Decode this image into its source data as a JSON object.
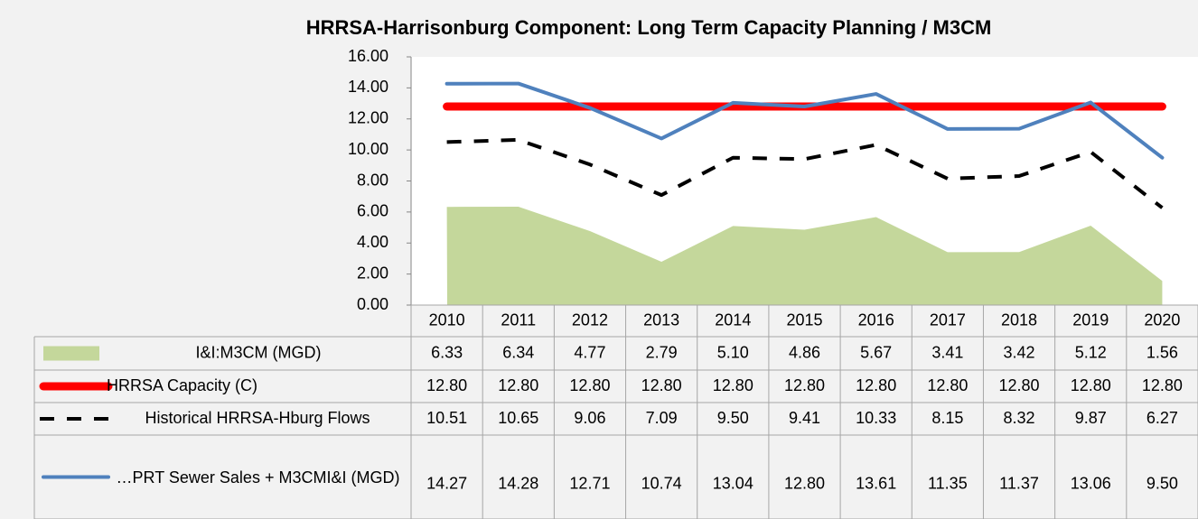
{
  "chart_data": {
    "type": "line",
    "title": "HRRSA-Harrisonburg Component:  Long Term Capacity Planning / M3CM",
    "categories": [
      "2010",
      "2011",
      "2012",
      "2013",
      "2014",
      "2015",
      "2016",
      "2017",
      "2018",
      "2019",
      "2020"
    ],
    "ylim": [
      0,
      16
    ],
    "yticks": [
      {
        "value": 0,
        "label": "0.00"
      },
      {
        "value": 2,
        "label": "2.00"
      },
      {
        "value": 4,
        "label": "4.00"
      },
      {
        "value": 6,
        "label": "6.00"
      },
      {
        "value": 8,
        "label": "8.00"
      },
      {
        "value": 10,
        "label": "10.00"
      },
      {
        "value": 12,
        "label": "12.00"
      },
      {
        "value": 14,
        "label": "14.00"
      },
      {
        "value": 16,
        "label": "16.00"
      }
    ],
    "series": [
      {
        "name": "I&I:M3CM (MGD)",
        "type": "area",
        "color": "#c4d79b",
        "values": [
          6.33,
          6.34,
          4.77,
          2.79,
          5.1,
          4.86,
          5.67,
          3.41,
          3.42,
          5.12,
          1.56
        ],
        "value_labels": [
          "6.33",
          "6.34",
          "4.77",
          "2.79",
          "5.10",
          "4.86",
          "5.67",
          "3.41",
          "3.42",
          "5.12",
          "1.56"
        ]
      },
      {
        "name": "HRRSA Capacity (C)",
        "type": "line",
        "color": "#ff0000",
        "style": "thick",
        "values": [
          12.8,
          12.8,
          12.8,
          12.8,
          12.8,
          12.8,
          12.8,
          12.8,
          12.8,
          12.8,
          12.8
        ],
        "value_labels": [
          "12.80",
          "12.80",
          "12.80",
          "12.80",
          "12.80",
          "12.80",
          "12.80",
          "12.80",
          "12.80",
          "12.80",
          "12.80"
        ]
      },
      {
        "name": "Historical HRRSA-Hburg Flows",
        "type": "line",
        "color": "#000000",
        "style": "dashed",
        "values": [
          10.51,
          10.65,
          9.06,
          7.09,
          9.5,
          9.41,
          10.33,
          8.15,
          8.32,
          9.87,
          6.27
        ],
        "value_labels": [
          "10.51",
          "10.65",
          "9.06",
          "7.09",
          "9.50",
          "9.41",
          "10.33",
          "8.15",
          "8.32",
          "9.87",
          "6.27"
        ]
      },
      {
        "name": "…PRT Sewer Sales + M3CMI&I (MGD)",
        "type": "line",
        "color": "#4f81bd",
        "style": "solid",
        "values": [
          14.27,
          14.28,
          12.71,
          10.74,
          13.04,
          12.8,
          13.61,
          11.35,
          11.37,
          13.06,
          9.5
        ],
        "value_labels": [
          "14.27",
          "14.28",
          "12.71",
          "10.74",
          "13.04",
          "12.80",
          "13.61",
          "11.35",
          "11.37",
          "13.06",
          "9.50"
        ]
      }
    ]
  }
}
